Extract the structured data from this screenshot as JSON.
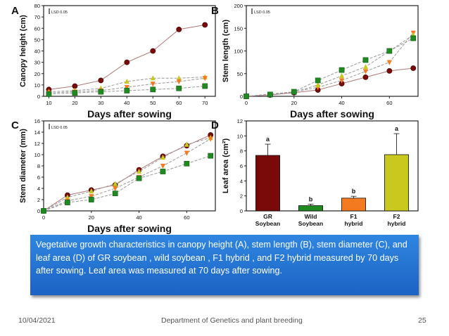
{
  "colors": {
    "gr_soybean": "#7a0a0a",
    "wild_soybean": "#1f8a1f",
    "f1_hybrid": "#f47a20",
    "f2_hybrid": "#c8c81e",
    "line_gr": "#b07878",
    "line_other": "#999999",
    "caption_bg": "#2a7fd9"
  },
  "caption": "Vegetative growth characteristics in canopy height (A), stem length (B), stem diameter (C), and leaf area (D) of GR soybean , wild soybean , F1 hybrid , and F2 hybrid  measured by 70 days after sowing. Leaf area was measured at 70 days after sowing.",
  "footer": {
    "date": "10/04/2021",
    "department": "Department of Genetics and plant breeding",
    "page": "25"
  },
  "chart_data": [
    {
      "panel": "A",
      "type": "line",
      "xlabel": "Days after sowing",
      "ylabel": "Canopy height (cm)",
      "lsd_label": "LSD 0.05",
      "x": [
        10,
        20,
        30,
        40,
        50,
        60,
        70
      ],
      "xticks": [
        10,
        20,
        30,
        40,
        50,
        60,
        70
      ],
      "yticks": [
        0,
        10,
        20,
        30,
        40,
        50,
        60,
        70,
        80
      ],
      "xlim": [
        8,
        74
      ],
      "ylim": [
        0,
        80
      ],
      "series": [
        {
          "key": "gr",
          "marker": "circle",
          "values": [
            6,
            9,
            14,
            30,
            40,
            59,
            63
          ]
        },
        {
          "key": "f2",
          "marker": "triangle-up",
          "values": [
            4,
            5,
            7,
            13,
            16,
            16,
            17
          ]
        },
        {
          "key": "f1",
          "marker": "triangle-down",
          "values": [
            3,
            4,
            5,
            8,
            11,
            13,
            16
          ]
        },
        {
          "key": "wild",
          "marker": "square",
          "values": [
            2,
            3,
            4,
            5,
            6,
            7,
            9
          ]
        }
      ]
    },
    {
      "panel": "B",
      "type": "line",
      "xlabel": "Days after sowing",
      "ylabel": "Stem length (cm)",
      "lsd_label": "LSD 0.05",
      "x": [
        0,
        10,
        20,
        30,
        40,
        50,
        60,
        70
      ],
      "xticks": [
        0,
        20,
        40,
        60
      ],
      "yticks": [
        0,
        50,
        100,
        150,
        200
      ],
      "xlim": [
        0,
        72
      ],
      "ylim": [
        0,
        200
      ],
      "series": [
        {
          "key": "gr",
          "marker": "circle",
          "values": [
            0,
            3,
            8,
            14,
            28,
            42,
            56,
            62
          ]
        },
        {
          "key": "f1",
          "marker": "triangle-down",
          "values": [
            0,
            5,
            10,
            20,
            35,
            55,
            75,
            140
          ]
        },
        {
          "key": "f2",
          "marker": "triangle-up",
          "values": [
            0,
            4,
            9,
            25,
            45,
            65,
            100,
            135
          ]
        },
        {
          "key": "wild",
          "marker": "square",
          "values": [
            0,
            4,
            10,
            35,
            58,
            80,
            100,
            128
          ]
        }
      ]
    },
    {
      "panel": "C",
      "type": "line",
      "xlabel": "Days after sowing",
      "ylabel": "Stem diameter (mm)",
      "lsd_label": "LSD 0.05",
      "x": [
        0,
        10,
        20,
        30,
        40,
        50,
        60,
        70
      ],
      "xticks": [
        0,
        20,
        40,
        60
      ],
      "yticks": [
        0,
        2,
        4,
        6,
        8,
        10,
        12,
        14,
        16
      ],
      "xlim": [
        0,
        72
      ],
      "ylim": [
        0,
        16
      ],
      "series": [
        {
          "key": "gr",
          "marker": "circle",
          "values": [
            0,
            2.8,
            3.7,
            4.6,
            7.3,
            9.7,
            11.6,
            13.5
          ]
        },
        {
          "key": "f2",
          "marker": "triangle-up",
          "values": [
            0,
            2.4,
            3.5,
            4.8,
            7.0,
            9.5,
            11.8,
            13.0
          ]
        },
        {
          "key": "f1",
          "marker": "triangle-down",
          "values": [
            0,
            1.8,
            2.6,
            4.0,
            6.0,
            8.0,
            10.3,
            12.8
          ]
        },
        {
          "key": "wild",
          "marker": "square",
          "values": [
            0,
            1.5,
            2.0,
            3.1,
            5.8,
            7.0,
            8.4,
            9.8
          ]
        }
      ]
    },
    {
      "panel": "D",
      "type": "bar",
      "ylabel": "Leaf area (cm²)",
      "categories": [
        "GR Soybean",
        "Wild Soybean",
        "F1 hybrid",
        "F2 hybrid"
      ],
      "category_lines": [
        [
          "GR",
          "Soybean"
        ],
        [
          "Wild",
          "Soybean"
        ],
        [
          "F1",
          "hybrid"
        ],
        [
          "F2",
          "hybrid"
        ]
      ],
      "values": [
        7.4,
        0.7,
        1.7,
        7.5
      ],
      "errors": [
        1.5,
        0.2,
        0.25,
        2.8
      ],
      "letters": [
        "a",
        "b",
        "b",
        "a"
      ],
      "bar_keys": [
        "gr",
        "wild",
        "f1",
        "f2"
      ],
      "yticks": [
        0,
        2,
        4,
        6,
        8,
        10,
        12
      ],
      "ylim": [
        0,
        12
      ]
    }
  ]
}
